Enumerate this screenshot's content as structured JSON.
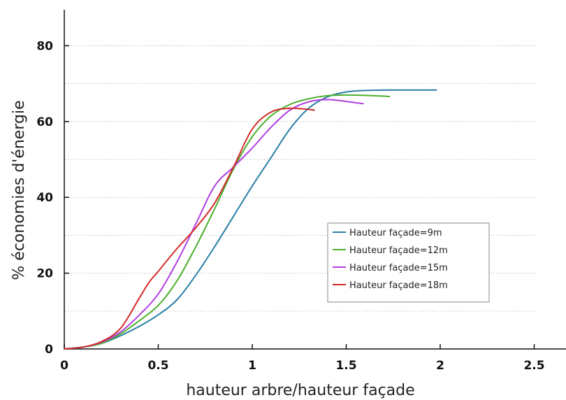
{
  "chart_data": {
    "type": "line",
    "title": "",
    "xlabel": "hauteur arbre/hauteur façade",
    "ylabel": "% économies d'énergie",
    "xlim": [
      0,
      2.6
    ],
    "ylim": [
      0,
      80
    ],
    "xticks": [
      0,
      0.5,
      1,
      1.5,
      2,
      2.5
    ],
    "xtick_labels": [
      "0",
      "0.5",
      "1",
      "1.5",
      "2",
      "2.5"
    ],
    "yticks": [
      0,
      20,
      40,
      60,
      80
    ],
    "ytick_labels": [
      "0",
      "20",
      "40",
      "60",
      "80"
    ],
    "grid": "horizontal dotted",
    "legend_position": "lower-right",
    "series": [
      {
        "name": "Hauteur façade=9m",
        "color": "#2a7fa8",
        "x": [
          0,
          0.1,
          0.2,
          0.3,
          0.4,
          0.5,
          0.6,
          0.7,
          0.8,
          0.9,
          1.0,
          1.1,
          1.2,
          1.3,
          1.4,
          1.5,
          1.6,
          1.7,
          1.8,
          1.9,
          1.98
        ],
        "y": [
          0,
          0.5,
          1.5,
          3.5,
          6,
          9,
          13,
          19.5,
          27,
          35,
          43,
          50.5,
          58,
          63.5,
          66.5,
          67.8,
          68.2,
          68.3,
          68.3,
          68.3,
          68.3
        ]
      },
      {
        "name": "Hauteur façade=12m",
        "color": "#4caf2e",
        "x": [
          0,
          0.1,
          0.2,
          0.3,
          0.4,
          0.5,
          0.6,
          0.7,
          0.8,
          0.9,
          1.0,
          1.1,
          1.2,
          1.3,
          1.4,
          1.5,
          1.6,
          1.7,
          1.73
        ],
        "y": [
          0,
          0.5,
          1.5,
          4,
          7.5,
          11.5,
          18,
          27,
          37,
          47.5,
          56,
          61.5,
          64.5,
          66,
          66.8,
          67,
          66.9,
          66.7,
          66.6
        ]
      },
      {
        "name": "Hauteur façade=15m",
        "color": "#b23ee0",
        "x": [
          0,
          0.1,
          0.2,
          0.3,
          0.4,
          0.5,
          0.6,
          0.7,
          0.8,
          0.9,
          1.0,
          1.1,
          1.2,
          1.3,
          1.4,
          1.5,
          1.59
        ],
        "y": [
          0,
          0.5,
          1.8,
          4.5,
          9,
          14.5,
          23,
          33,
          43,
          48,
          53,
          58.5,
          63,
          65.2,
          65.8,
          65.3,
          64.7
        ]
      },
      {
        "name": "Hauteur façade=18m",
        "color": "#d42a2a",
        "x": [
          0,
          0.1,
          0.2,
          0.3,
          0.4,
          0.45,
          0.5,
          0.6,
          0.7,
          0.8,
          0.9,
          1.0,
          1.1,
          1.2,
          1.3,
          1.33
        ],
        "y": [
          0,
          0.5,
          2,
          5.5,
          13.5,
          17.5,
          20.5,
          26.5,
          32,
          38.5,
          48,
          58,
          62.5,
          63.5,
          63.2,
          63
        ]
      }
    ]
  }
}
